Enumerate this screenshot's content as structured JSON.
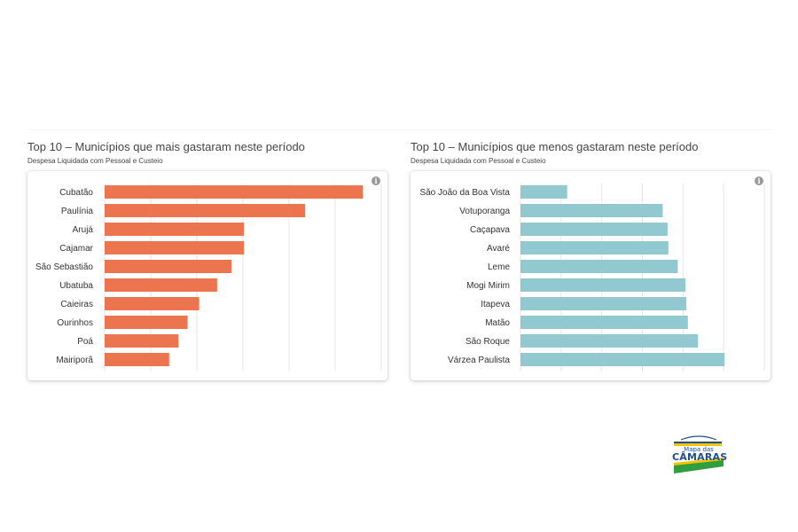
{
  "charts": [
    {
      "title": "Top 10 – Municípios que mais gastaram neste período",
      "subtitle": "Despesa Liquidada com Pessoal e Custeio",
      "info_icon": "i",
      "color": "#ec754f"
    },
    {
      "title": "Top 10 – Municípios que menos gastaram neste período",
      "subtitle": "Despesa Liquidada com Pessoal e Custeio",
      "info_icon": "i",
      "color": "#92c9d1"
    }
  ],
  "chart_data": [
    {
      "type": "bar",
      "orientation": "horizontal",
      "title": "Top 10 – Municípios que mais gastaram neste período",
      "subtitle": "Despesa Liquidada com Pessoal e Custeio",
      "categories": [
        "Cubatão",
        "Paulínia",
        "Arujá",
        "Cajamar",
        "São Sebastião",
        "Ubatuba",
        "Caieiras",
        "Ourinhos",
        "Poá",
        "Mairiporã"
      ],
      "values": [
        5.6,
        4.35,
        3.02,
        3.02,
        2.75,
        2.44,
        2.05,
        1.8,
        1.6,
        1.4
      ],
      "xlim": [
        0,
        6
      ],
      "grid": true,
      "color": "#ec754f"
    },
    {
      "type": "bar",
      "orientation": "horizontal",
      "title": "Top 10 – Municípios que menos gastaram neste período",
      "subtitle": "Despesa Liquidada com Pessoal e Custeio",
      "categories": [
        "São João da Boa Vista",
        "Votuporanga",
        "Caçapava",
        "Avaré",
        "Leme",
        "Mogi Mirim",
        "Itapeva",
        "Matão",
        "São Roque",
        "Várzea Paulista"
      ],
      "values": [
        1.15,
        3.5,
        3.62,
        3.64,
        3.87,
        4.06,
        4.08,
        4.12,
        4.37,
        5.02
      ],
      "xlim": [
        0,
        6
      ],
      "grid": true,
      "color": "#92c9d1"
    }
  ],
  "logo": {
    "line1": "Mapa das",
    "line2": "CÂMARAS"
  }
}
